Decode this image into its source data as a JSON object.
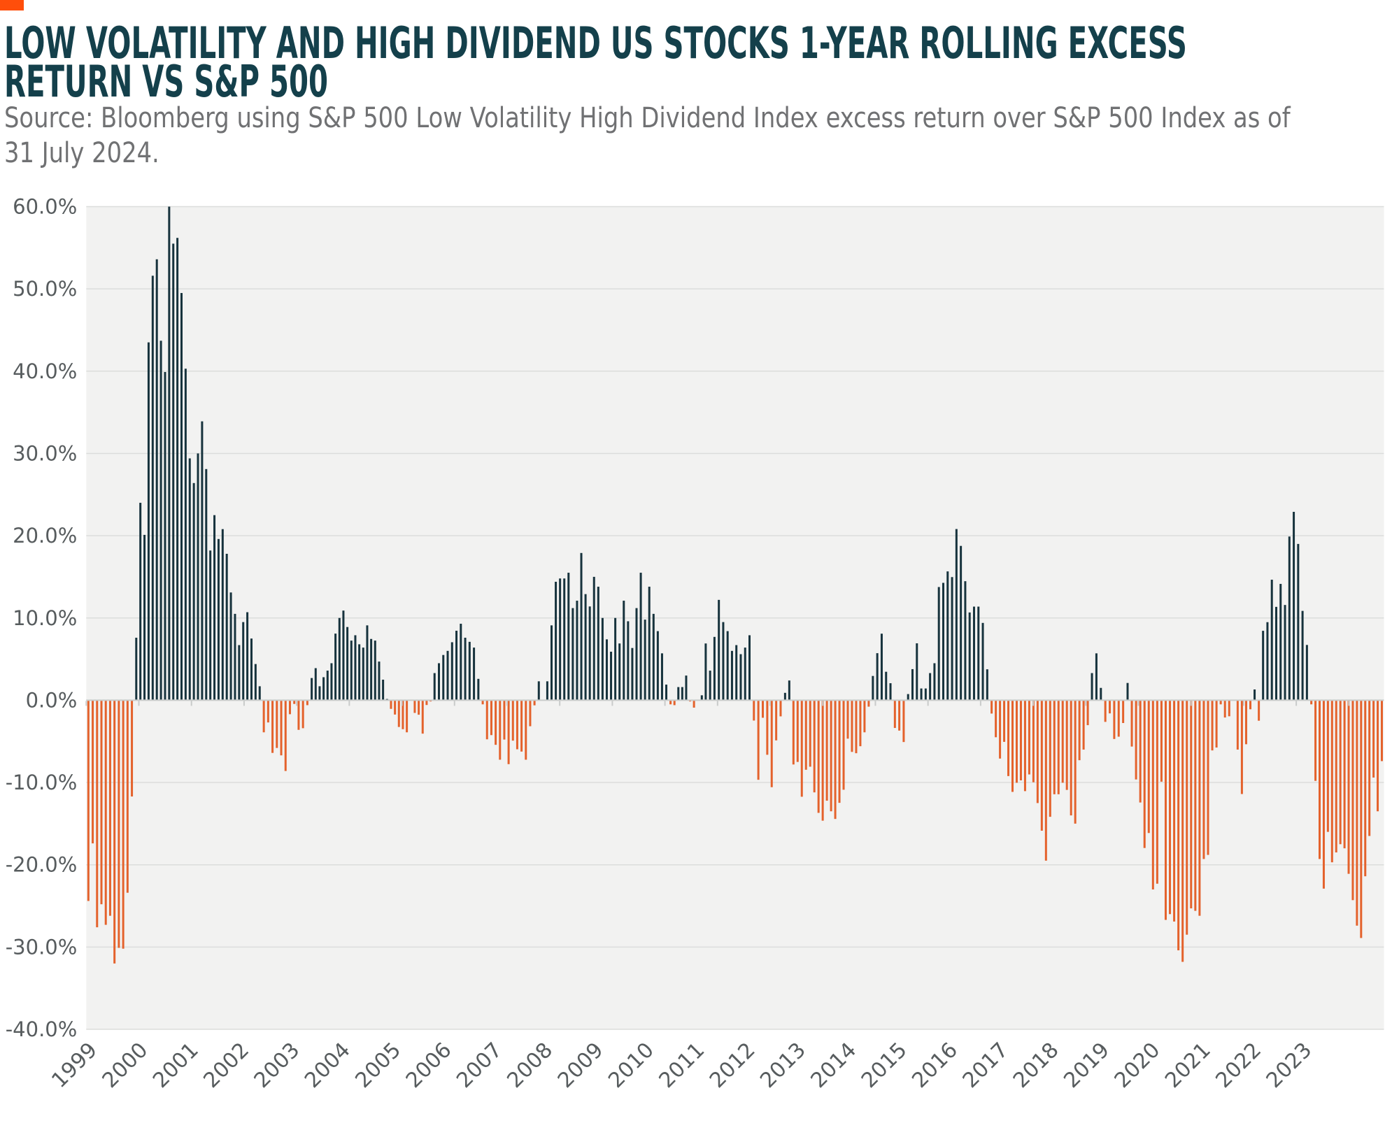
{
  "header": {
    "accent_square_color": "#FF4E0B",
    "title": "LOW VOLATILITY AND HIGH DIVIDEND US STOCKS 1-YEAR ROLLING EXCESS RETURN VS S&P 500",
    "source": "Source: Bloomberg using S&P 500 Low Volatility High Dividend Index excess return over S&P 500 Index as of 31 July 2024."
  },
  "chart_data": {
    "type": "bar",
    "title": "Low Volatility and High Dividend US stocks 1-year rolling excess return vs S&P 500",
    "series_name": "1-year rolling excess return (%)",
    "frequency": "monthly",
    "start_month": "1999-01",
    "end_month": "2024-07",
    "values": [
      -24.4,
      -17.4,
      -27.6,
      -24.8,
      -27.3,
      -26.2,
      -32.0,
      -30.1,
      -30.2,
      -23.4,
      -11.7,
      7.6,
      24.0,
      20.1,
      43.5,
      51.6,
      53.6,
      43.7,
      39.9,
      60.0,
      55.5,
      56.2,
      49.5,
      40.3,
      29.4,
      26.4,
      30.0,
      33.9,
      28.1,
      18.2,
      22.5,
      19.6,
      20.8,
      17.8,
      13.1,
      10.5,
      6.7,
      9.5,
      10.7,
      7.5,
      4.4,
      1.7,
      -3.9,
      -2.7,
      -6.4,
      -5.8,
      -6.7,
      -8.6,
      -1.7,
      -0.45,
      -3.6,
      -3.4,
      -0.6,
      2.7,
      3.9,
      1.7,
      2.8,
      3.6,
      4.5,
      8.1,
      10.0,
      10.9,
      8.9,
      7.25,
      7.9,
      6.8,
      6.4,
      9.1,
      7.45,
      7.25,
      4.7,
      2.5,
      0.15,
      -1.05,
      -1.74,
      -3.25,
      -3.52,
      -3.9,
      -0.05,
      -1.54,
      -1.76,
      -4.06,
      -0.58,
      -0.15,
      3.3,
      4.5,
      5.5,
      6.0,
      7.05,
      8.45,
      9.3,
      7.6,
      7.1,
      6.4,
      2.6,
      -0.5,
      -4.75,
      -4.24,
      -5.42,
      -7.23,
      -4.78,
      -7.77,
      -4.91,
      -5.96,
      -6.24,
      -7.23,
      -3.16,
      -0.62,
      2.3,
      0.0,
      2.3,
      9.1,
      14.4,
      14.8,
      14.8,
      15.5,
      11.2,
      12.1,
      17.9,
      12.9,
      11.4,
      15.0,
      13.8,
      10.0,
      7.4,
      5.9,
      10.0,
      6.9,
      12.1,
      9.6,
      6.35,
      11.2,
      15.5,
      9.8,
      13.8,
      10.5,
      8.4,
      5.7,
      1.9,
      -0.5,
      -0.6,
      1.6,
      1.6,
      3.0,
      -0.15,
      -0.9,
      0.0,
      0.6,
      6.9,
      3.6,
      7.7,
      12.2,
      9.5,
      8.4,
      6.0,
      6.7,
      5.6,
      6.4,
      7.9,
      -2.47,
      -9.67,
      -2.13,
      -6.63,
      -10.57,
      -4.88,
      -1.96,
      0.9,
      2.4,
      -7.81,
      -7.5,
      -11.73,
      -8.45,
      -8.08,
      -11.2,
      -13.69,
      -14.64,
      -12.21,
      -13.5,
      -14.43,
      -12.47,
      -10.88,
      -4.67,
      -6.28,
      -6.44,
      -5.59,
      -3.9,
      -0.78,
      2.95,
      5.72,
      8.09,
      3.46,
      2.07,
      -3.37,
      -3.69,
      -5.08,
      0.75,
      3.78,
      6.92,
      1.43,
      1.43,
      3.3,
      4.5,
      13.76,
      14.27,
      15.66,
      14.97,
      20.81,
      18.76,
      14.47,
      10.67,
      11.38,
      11.38,
      9.4,
      3.76,
      -1.62,
      -4.5,
      -7.09,
      -5.06,
      -9.22,
      -11.14,
      -10.03,
      -9.74,
      -11.05,
      -9.02,
      -9.97,
      -12.5,
      -15.86,
      -19.5,
      -14.17,
      -11.43,
      -11.43,
      -10.03,
      -10.9,
      -14.0,
      -15.0,
      -7.29,
      -6.0,
      -3.03,
      3.3,
      5.7,
      1.5,
      -2.63,
      -1.6,
      -4.71,
      -4.43,
      -2.77,
      2.1,
      -5.63,
      -9.63,
      -12.43,
      -17.96,
      -16.14,
      -23.0,
      -22.3,
      -9.9,
      -26.7,
      -26.0,
      -26.9,
      -30.4,
      -31.8,
      -28.5,
      -25.3,
      -25.6,
      -26.2,
      -19.3,
      -18.8,
      -6.1,
      -5.75,
      -0.5,
      -2.1,
      -1.95,
      0.0,
      -6.0,
      -11.4,
      -5.35,
      -1.1,
      1.31,
      -2.49,
      8.44,
      9.49,
      14.65,
      11.35,
      14.14,
      11.58,
      19.9,
      22.9,
      19.0,
      10.86,
      6.72,
      -0.5,
      -9.8,
      -19.3,
      -22.9,
      -16.0,
      -19.7,
      -18.5,
      -17.5,
      -18.0,
      -21.1,
      -24.3,
      -27.4,
      -28.9,
      -21.4,
      -16.5,
      -9.4,
      -13.5,
      -7.4
    ],
    "x_tick_labels": [
      "1999",
      "2000",
      "2001",
      "2002",
      "2003",
      "2004",
      "2005",
      "2006",
      "2007",
      "2008",
      "2009",
      "2010",
      "2011",
      "2012",
      "2013",
      "2014",
      "2015",
      "2016",
      "2017",
      "2018",
      "2019",
      "2020",
      "2021",
      "2022",
      "2023"
    ],
    "y_tick_labels": [
      "60.0%",
      "50.0%",
      "40.0%",
      "30.0%",
      "20.0%",
      "10.0%",
      "0.0%",
      "-10.0%",
      "-20.0%",
      "-30.0%",
      "-40.0%"
    ],
    "ylim": [
      -40,
      60
    ],
    "ytick_step": 10,
    "grid": true,
    "legend": false,
    "colors": {
      "positive": "#17333D",
      "negative": "#E4622C",
      "plot_background": "#F2F2F1",
      "gridline": "#DCDDDC",
      "zero_line": "#C9CBCA",
      "axis_tick": "#C9CBCA",
      "axis_label": "#575C5E",
      "title": "#14404B",
      "source_text": "#707173"
    }
  }
}
